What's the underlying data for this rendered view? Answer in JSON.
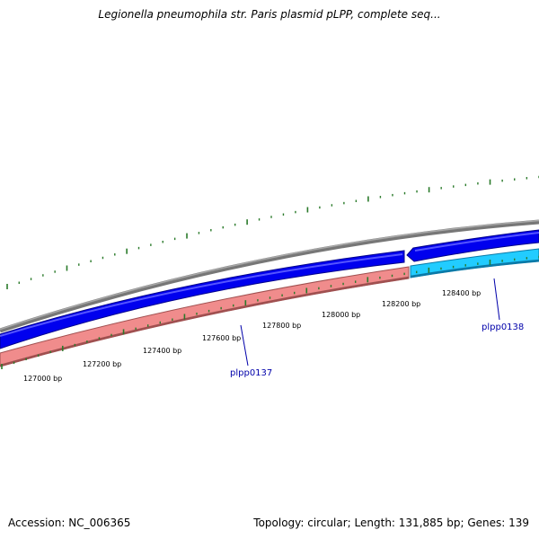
{
  "title": "Legionella pneumophila str. Paris plasmid pLPP, complete seq...",
  "footer": {
    "accession": "Accession: NC_006365",
    "summary": "Topology: circular; Length: 131,885 bp; Genes: 139"
  },
  "colors": {
    "backbone": "#888888",
    "forward_cds": "#0000ee",
    "reverse_cds_1": "#ee8888",
    "reverse_cds_2": "#22bbee",
    "tick": "#2a7a2a",
    "gene_label": "#0000aa"
  },
  "scale": {
    "labels": [
      "127000 bp",
      "127200 bp",
      "127400 bp",
      "127600 bp",
      "127800 bp",
      "128000 bp",
      "128200 bp",
      "128400 bp"
    ]
  },
  "genes": [
    {
      "name": "plpp0137",
      "strand": "reverse"
    },
    {
      "name": "plpp0138",
      "strand": "reverse"
    }
  ]
}
